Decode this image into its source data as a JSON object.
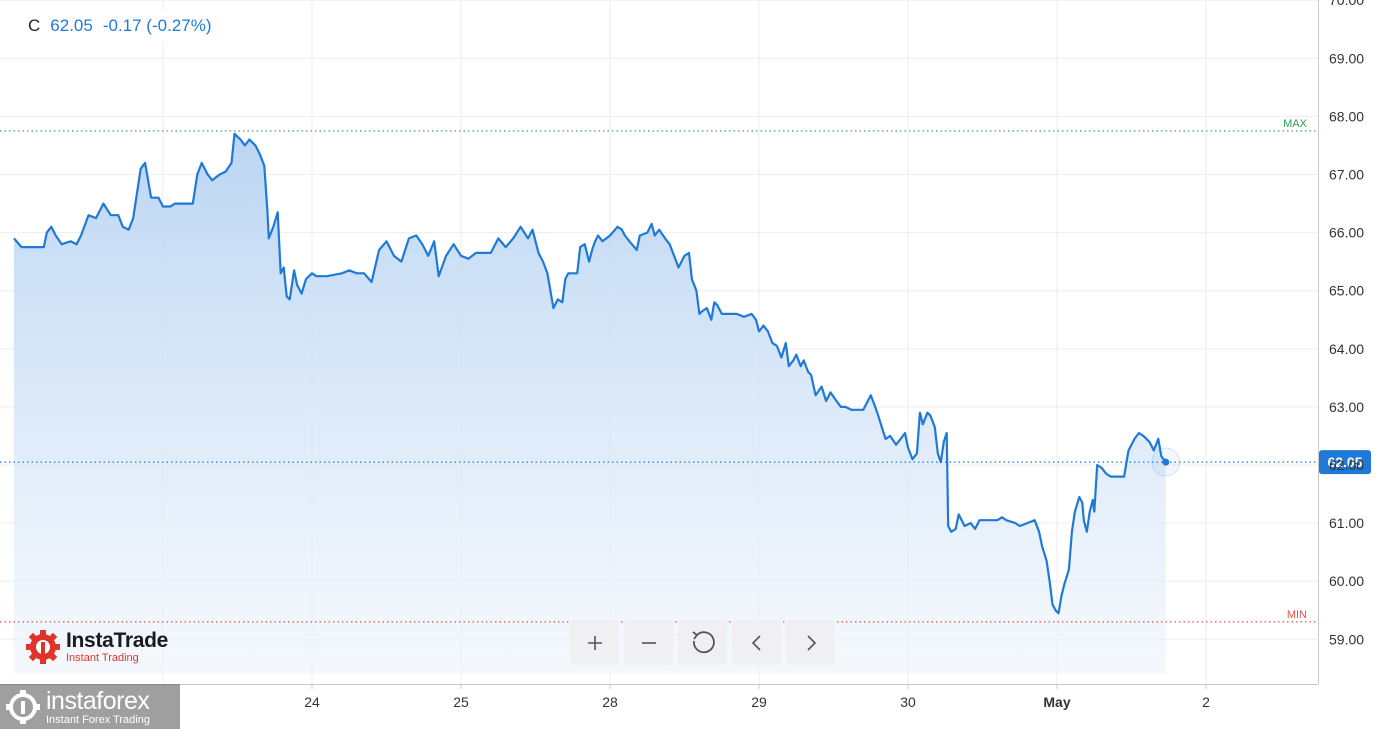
{
  "legend": {
    "symbol": "C",
    "value": "62.05",
    "change": "-0.17 (-0.27%)"
  },
  "logos": {
    "instatrade": {
      "name": "InstaTrade",
      "sub": "Instant Trading"
    },
    "instaforex": {
      "name": "instaforex",
      "sub": "Instant Forex Trading"
    }
  },
  "toolbar": [
    {
      "name": "zoom-in-button",
      "icon": "plus-icon"
    },
    {
      "name": "zoom-out-button",
      "icon": "minus-icon"
    },
    {
      "name": "reset-button",
      "icon": "refresh-icon"
    },
    {
      "name": "scroll-left-button",
      "icon": "chevron-left-icon"
    },
    {
      "name": "scroll-right-button",
      "icon": "chevron-right-icon"
    }
  ],
  "colors": {
    "line": "#1e7ad6",
    "max": "#2e9e57",
    "min": "#e0534a",
    "grid": "#eeeeee",
    "axis_text": "#333333"
  },
  "chart_data": {
    "type": "area",
    "title": "",
    "xlabel": "",
    "ylabel": "",
    "ylim": [
      58.25,
      70.0
    ],
    "y_ticks": [
      "59.00",
      "60.00",
      "61.00",
      "62.00",
      "63.00",
      "64.00",
      "65.00",
      "66.00",
      "67.00",
      "68.00",
      "69.00",
      "70.00"
    ],
    "x_ticks": [
      {
        "label": "24",
        "x": 2.0
      },
      {
        "label": "25",
        "x": 3.0
      },
      {
        "label": "28",
        "x": 4.0
      },
      {
        "label": "29",
        "x": 5.0
      },
      {
        "label": "30",
        "x": 6.0
      },
      {
        "label": "May",
        "x": 7.0
      },
      {
        "label": "2",
        "x": 8.0
      }
    ],
    "xlim": [
      -0.1,
      8.8
    ],
    "max": {
      "label": "MAX",
      "value": 67.75
    },
    "min": {
      "label": "MIN",
      "value": 59.3
    },
    "last": {
      "label": "62.05",
      "value": 62.05
    },
    "series": [
      {
        "values": [
          [
            0.0,
            65.9
          ],
          [
            0.05,
            65.75
          ],
          [
            0.2,
            65.75
          ],
          [
            0.22,
            66.0
          ],
          [
            0.25,
            66.1
          ],
          [
            0.28,
            65.95
          ],
          [
            0.32,
            65.8
          ],
          [
            0.38,
            65.85
          ],
          [
            0.42,
            65.8
          ],
          [
            0.45,
            65.95
          ],
          [
            0.5,
            66.3
          ],
          [
            0.55,
            66.25
          ],
          [
            0.6,
            66.5
          ],
          [
            0.65,
            66.3
          ],
          [
            0.7,
            66.3
          ],
          [
            0.73,
            66.1
          ],
          [
            0.77,
            66.05
          ],
          [
            0.8,
            66.25
          ],
          [
            0.85,
            67.1
          ],
          [
            0.88,
            67.2
          ],
          [
            0.92,
            66.6
          ],
          [
            0.97,
            66.6
          ],
          [
            1.0,
            66.45
          ],
          [
            1.05,
            66.45
          ],
          [
            1.08,
            66.5
          ],
          [
            1.2,
            66.5
          ],
          [
            1.23,
            67.0
          ],
          [
            1.26,
            67.2
          ],
          [
            1.3,
            67.0
          ],
          [
            1.33,
            66.9
          ],
          [
            1.38,
            67.0
          ],
          [
            1.42,
            67.05
          ],
          [
            1.46,
            67.2
          ],
          [
            1.48,
            67.7
          ],
          [
            1.52,
            67.6
          ],
          [
            1.55,
            67.5
          ],
          [
            1.58,
            67.6
          ],
          [
            1.62,
            67.5
          ],
          [
            1.65,
            67.35
          ],
          [
            1.68,
            67.15
          ],
          [
            1.7,
            66.4
          ],
          [
            1.71,
            65.9
          ],
          [
            1.74,
            66.1
          ],
          [
            1.77,
            66.35
          ],
          [
            1.79,
            65.3
          ],
          [
            1.81,
            65.4
          ],
          [
            1.83,
            64.9
          ],
          [
            1.85,
            64.85
          ],
          [
            1.88,
            65.35
          ],
          [
            1.9,
            65.1
          ],
          [
            1.93,
            64.95
          ],
          [
            1.96,
            65.2
          ],
          [
            2.0,
            65.3
          ],
          [
            2.03,
            65.25
          ],
          [
            2.1,
            65.25
          ],
          [
            2.2,
            65.3
          ],
          [
            2.25,
            65.35
          ],
          [
            2.3,
            65.3
          ],
          [
            2.35,
            65.3
          ],
          [
            2.4,
            65.15
          ],
          [
            2.45,
            65.7
          ],
          [
            2.5,
            65.85
          ],
          [
            2.55,
            65.6
          ],
          [
            2.6,
            65.5
          ],
          [
            2.65,
            65.9
          ],
          [
            2.7,
            65.95
          ],
          [
            2.74,
            65.8
          ],
          [
            2.78,
            65.6
          ],
          [
            2.82,
            65.85
          ],
          [
            2.85,
            65.25
          ],
          [
            2.9,
            65.6
          ],
          [
            2.95,
            65.8
          ],
          [
            3.0,
            65.6
          ],
          [
            3.05,
            65.55
          ],
          [
            3.1,
            65.65
          ],
          [
            3.2,
            65.65
          ],
          [
            3.25,
            65.9
          ],
          [
            3.3,
            65.75
          ],
          [
            3.35,
            65.9
          ],
          [
            3.4,
            66.1
          ],
          [
            3.45,
            65.9
          ],
          [
            3.48,
            66.05
          ],
          [
            3.52,
            65.65
          ],
          [
            3.55,
            65.5
          ],
          [
            3.58,
            65.3
          ],
          [
            3.6,
            65.0
          ],
          [
            3.62,
            64.7
          ],
          [
            3.65,
            64.85
          ],
          [
            3.68,
            64.8
          ],
          [
            3.7,
            65.2
          ],
          [
            3.72,
            65.3
          ],
          [
            3.78,
            65.3
          ],
          [
            3.8,
            65.75
          ],
          [
            3.83,
            65.8
          ],
          [
            3.86,
            65.5
          ],
          [
            3.88,
            65.7
          ],
          [
            3.9,
            65.85
          ],
          [
            3.92,
            65.95
          ],
          [
            3.95,
            65.85
          ],
          [
            4.0,
            65.95
          ],
          [
            4.05,
            66.1
          ],
          [
            4.08,
            66.05
          ],
          [
            4.1,
            65.95
          ],
          [
            4.13,
            65.85
          ],
          [
            4.18,
            65.7
          ],
          [
            4.2,
            65.95
          ],
          [
            4.25,
            66.0
          ],
          [
            4.28,
            66.15
          ],
          [
            4.3,
            65.95
          ],
          [
            4.33,
            66.05
          ],
          [
            4.37,
            65.9
          ],
          [
            4.4,
            65.8
          ],
          [
            4.43,
            65.6
          ],
          [
            4.46,
            65.4
          ],
          [
            4.5,
            65.6
          ],
          [
            4.53,
            65.65
          ],
          [
            4.55,
            65.2
          ],
          [
            4.58,
            65.0
          ],
          [
            4.6,
            64.6
          ],
          [
            4.62,
            64.65
          ],
          [
            4.65,
            64.7
          ],
          [
            4.68,
            64.5
          ],
          [
            4.7,
            64.8
          ],
          [
            4.72,
            64.75
          ],
          [
            4.75,
            64.6
          ],
          [
            4.85,
            64.6
          ],
          [
            4.9,
            64.55
          ],
          [
            4.95,
            64.6
          ],
          [
            4.98,
            64.5
          ],
          [
            5.0,
            64.3
          ],
          [
            5.03,
            64.4
          ],
          [
            5.06,
            64.3
          ],
          [
            5.09,
            64.1
          ],
          [
            5.12,
            64.05
          ],
          [
            5.15,
            63.85
          ],
          [
            5.18,
            64.1
          ],
          [
            5.2,
            63.7
          ],
          [
            5.23,
            63.8
          ],
          [
            5.25,
            63.9
          ],
          [
            5.28,
            63.7
          ],
          [
            5.3,
            63.8
          ],
          [
            5.33,
            63.6
          ],
          [
            5.35,
            63.55
          ],
          [
            5.38,
            63.2
          ],
          [
            5.42,
            63.35
          ],
          [
            5.45,
            63.1
          ],
          [
            5.48,
            63.25
          ],
          [
            5.52,
            63.1
          ],
          [
            5.55,
            63.0
          ],
          [
            5.58,
            63.0
          ],
          [
            5.62,
            62.95
          ],
          [
            5.7,
            62.95
          ],
          [
            5.75,
            63.2
          ],
          [
            5.78,
            63.0
          ],
          [
            5.8,
            62.85
          ],
          [
            5.83,
            62.6
          ],
          [
            5.85,
            62.45
          ],
          [
            5.88,
            62.5
          ],
          [
            5.92,
            62.35
          ],
          [
            5.95,
            62.45
          ],
          [
            5.98,
            62.55
          ],
          [
            6.0,
            62.3
          ],
          [
            6.03,
            62.1
          ],
          [
            6.06,
            62.2
          ],
          [
            6.08,
            62.9
          ],
          [
            6.1,
            62.7
          ],
          [
            6.13,
            62.9
          ],
          [
            6.15,
            62.85
          ],
          [
            6.18,
            62.65
          ],
          [
            6.2,
            62.2
          ],
          [
            6.22,
            62.05
          ],
          [
            6.24,
            62.4
          ],
          [
            6.26,
            62.55
          ],
          [
            6.27,
            60.95
          ],
          [
            6.29,
            60.85
          ],
          [
            6.32,
            60.9
          ],
          [
            6.34,
            61.15
          ],
          [
            6.38,
            60.95
          ],
          [
            6.42,
            61.0
          ],
          [
            6.45,
            60.9
          ],
          [
            6.48,
            61.05
          ],
          [
            6.52,
            61.05
          ],
          [
            6.6,
            61.05
          ],
          [
            6.63,
            61.1
          ],
          [
            6.66,
            61.05
          ],
          [
            6.72,
            61.0
          ],
          [
            6.75,
            60.95
          ],
          [
            6.8,
            61.0
          ],
          [
            6.85,
            61.05
          ],
          [
            6.88,
            60.85
          ],
          [
            6.9,
            60.6
          ],
          [
            6.93,
            60.35
          ],
          [
            6.95,
            60.0
          ],
          [
            6.97,
            59.6
          ],
          [
            6.99,
            59.5
          ],
          [
            7.01,
            59.45
          ],
          [
            7.03,
            59.75
          ],
          [
            7.05,
            59.95
          ],
          [
            7.08,
            60.2
          ],
          [
            7.1,
            60.85
          ],
          [
            7.12,
            61.2
          ],
          [
            7.15,
            61.45
          ],
          [
            7.17,
            61.35
          ],
          [
            7.18,
            61.05
          ],
          [
            7.2,
            60.85
          ],
          [
            7.22,
            61.2
          ],
          [
            7.24,
            61.4
          ],
          [
            7.25,
            61.2
          ],
          [
            7.27,
            62.0
          ],
          [
            7.3,
            61.95
          ],
          [
            7.33,
            61.85
          ],
          [
            7.36,
            61.8
          ],
          [
            7.45,
            61.8
          ],
          [
            7.48,
            62.25
          ],
          [
            7.52,
            62.45
          ],
          [
            7.55,
            62.55
          ],
          [
            7.58,
            62.5
          ],
          [
            7.62,
            62.4
          ],
          [
            7.65,
            62.25
          ],
          [
            7.68,
            62.45
          ],
          [
            7.7,
            62.15
          ],
          [
            7.73,
            62.05
          ]
        ]
      }
    ]
  }
}
